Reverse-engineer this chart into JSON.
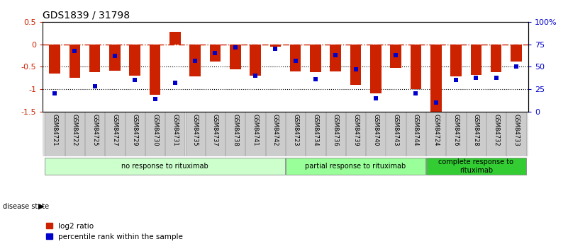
{
  "title": "GDS1839 / 31798",
  "samples": [
    "GSM84721",
    "GSM84722",
    "GSM84725",
    "GSM84727",
    "GSM84729",
    "GSM84730",
    "GSM84731",
    "GSM84735",
    "GSM84737",
    "GSM84738",
    "GSM84741",
    "GSM84742",
    "GSM84723",
    "GSM84734",
    "GSM84736",
    "GSM84739",
    "GSM84740",
    "GSM84743",
    "GSM84744",
    "GSM84724",
    "GSM84726",
    "GSM84728",
    "GSM84732",
    "GSM84733"
  ],
  "log2_ratio": [
    -0.65,
    -0.75,
    -0.62,
    -0.58,
    -0.7,
    -1.12,
    0.28,
    -0.72,
    -0.38,
    -0.55,
    -0.7,
    -0.05,
    -0.6,
    -0.62,
    -0.6,
    -0.9,
    -1.1,
    -0.52,
    -1.0,
    -1.55,
    -0.72,
    -0.68,
    -0.62,
    -0.38
  ],
  "percentile_pct": [
    20,
    68,
    28,
    62,
    35,
    14,
    32,
    57,
    65,
    72,
    40,
    70,
    57,
    36,
    63,
    47,
    15,
    63,
    20,
    10,
    35,
    38,
    38,
    50
  ],
  "groups": [
    {
      "label": "no response to rituximab",
      "start": 0,
      "end": 11,
      "color": "#ccffcc"
    },
    {
      "label": "partial response to rituximab",
      "start": 12,
      "end": 18,
      "color": "#99ff99"
    },
    {
      "label": "complete response to\nrituximab",
      "start": 19,
      "end": 23,
      "color": "#33cc33"
    }
  ],
  "ylim_left": [
    -1.5,
    0.5
  ],
  "ylim_right": [
    0,
    100
  ],
  "bar_color": "#cc2200",
  "marker_color": "#0000cc",
  "hline_0_color": "#cc2200",
  "hline_grid_color": "#000000",
  "background_color": "#ffffff",
  "bar_width": 0.55,
  "marker_size": 5
}
